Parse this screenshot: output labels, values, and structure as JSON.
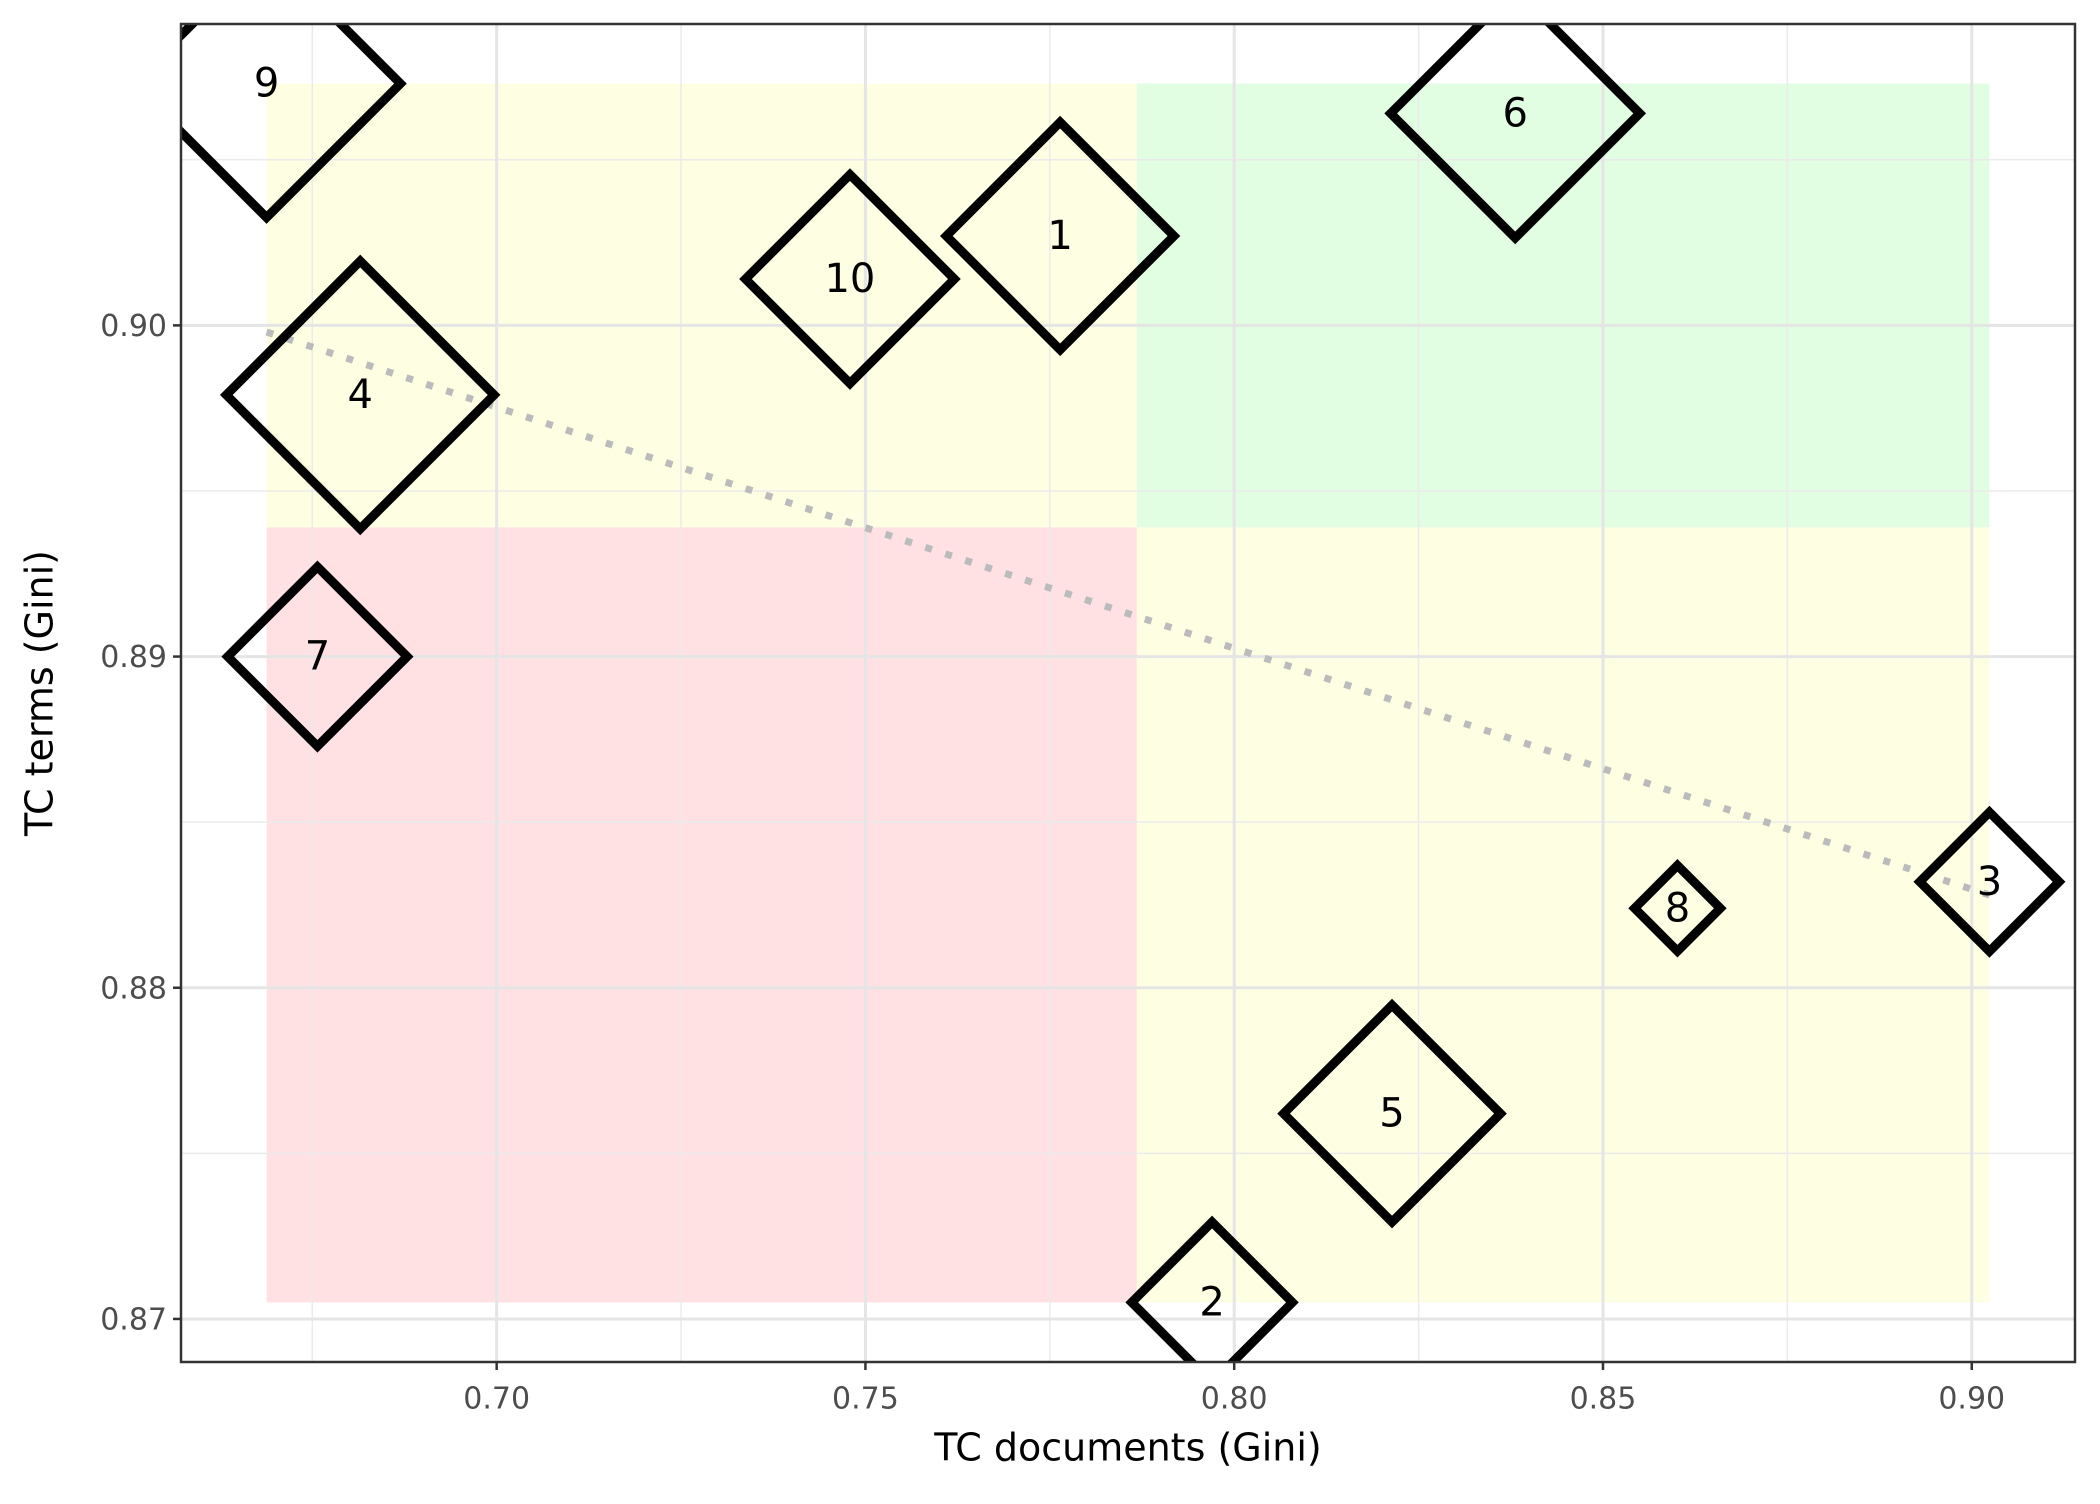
{
  "chart_data": {
    "type": "scatter",
    "xlabel": "TC documents (Gini)",
    "ylabel": "TC terms (Gini)",
    "labels": [
      "1",
      "2",
      "3",
      "4",
      "5",
      "6",
      "7",
      "8",
      "9",
      "10"
    ],
    "x": [
      0.7764,
      0.797,
      0.9024,
      0.6815,
      0.8214,
      0.8381,
      0.6757,
      0.8601,
      0.6688,
      0.7479
    ],
    "y": [
      0.9027,
      0.8705,
      0.8832,
      0.8979,
      0.8762,
      0.9064,
      0.89,
      0.8824,
      0.9073,
      0.9014
    ],
    "sizes": [
      85,
      60,
      52,
      100,
      81,
      93,
      67,
      32,
      100,
      78
    ],
    "color": "#000000",
    "xlim": [
      0.6572,
      0.914
    ],
    "ylim": [
      0.8687,
      0.9091
    ],
    "xticks": [
      {
        "value": 0.7,
        "label": "0.70"
      },
      0.75,
      {
        "value": 0.8,
        "label": "0.80"
      },
      0.85,
      {
        "value": 0.9,
        "label": "0.90"
      }
    ],
    "yticks": [
      0.87,
      0.88,
      0.89,
      {
        "value": 0.9,
        "label": "0.90"
      }
    ],
    "xminor": [
      0.675,
      0.725,
      0.775,
      0.825,
      0.875
    ],
    "yminor": [
      0.875,
      0.885,
      0.895,
      0.905
    ],
    "grid": true,
    "quadrants": [
      {
        "xlim": [
          0.6688,
          0.7868
        ],
        "ylim": [
          0.8939,
          0.9073
        ],
        "color": "#fefee2"
      },
      {
        "xlim": [
          0.7868,
          0.9024
        ],
        "ylim": [
          0.8939,
          0.9073
        ],
        "color": "#e1fde2"
      },
      {
        "xlim": [
          0.6688,
          0.7868
        ],
        "ylim": [
          0.8705,
          0.8939
        ],
        "color": "#ffe1e4"
      },
      {
        "xlim": [
          0.7868,
          0.9024
        ],
        "ylim": [
          0.8705,
          0.8939
        ],
        "color": "#fefee2"
      }
    ],
    "trend": {
      "x": [
        0.6688,
        0.9024
      ],
      "y": [
        0.8998,
        0.8828
      ],
      "color": "#bbbbbb"
    }
  }
}
